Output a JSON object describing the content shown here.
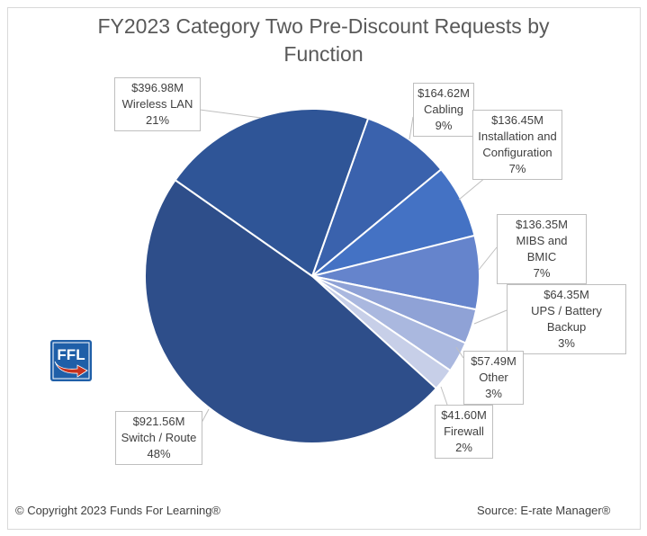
{
  "chart_data": {
    "type": "pie",
    "title": "FY2023 Category Two Pre-Discount Requests by Function",
    "title_lines": [
      "FY2023 Category Two Pre-Discount Requests by",
      "Function"
    ],
    "unit": "$M",
    "slices": [
      {
        "name": "Cabling",
        "value": 164.62,
        "value_label": "$164.62M",
        "percent_label": "9%",
        "color": "#3a62ad"
      },
      {
        "name": "Installation and Configuration",
        "value": 136.45,
        "value_label": "$136.45M",
        "percent_label": "7%",
        "color": "#4472c4"
      },
      {
        "name": "MIBS and BMIC",
        "value": 136.35,
        "value_label": "$136.35M",
        "percent_label": "7%",
        "color": "#6584cc"
      },
      {
        "name": "UPS / Battery Backup",
        "value": 64.35,
        "value_label": "$64.35M",
        "percent_label": "3%",
        "color": "#8fa2d6"
      },
      {
        "name": "Other",
        "value": 57.49,
        "value_label": "$57.49M",
        "percent_label": "3%",
        "color": "#aab8df"
      },
      {
        "name": "Firewall",
        "value": 41.6,
        "value_label": "$41.60M",
        "percent_label": "2%",
        "color": "#c7cfe8"
      },
      {
        "name": "Switch / Route",
        "value": 921.56,
        "value_label": "$921.56M",
        "percent_label": "48%",
        "color": "#2e4e8a"
      },
      {
        "name": "Wireless LAN",
        "value": 396.98,
        "value_label": "$396.98M",
        "percent_label": "21%",
        "color": "#2f5597"
      }
    ]
  },
  "footer": {
    "copyright": "© Copyright 2023 Funds For Learning®",
    "source": "Source: E-rate Manager®"
  },
  "logo": {
    "text": "FFL",
    "colors": {
      "blue": "#1f5fa8",
      "red": "#c8321e"
    }
  }
}
